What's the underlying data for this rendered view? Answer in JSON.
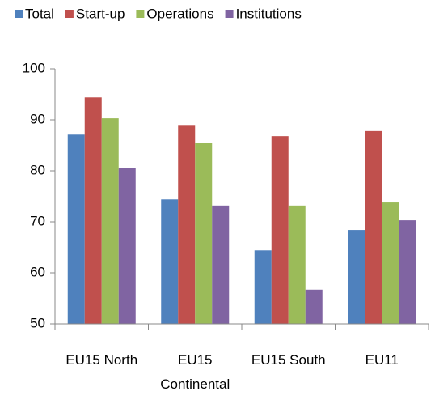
{
  "chart_data": {
    "type": "bar",
    "categories": [
      "EU15 North",
      "EU15 Continental",
      "EU15 South",
      "EU11"
    ],
    "series": [
      {
        "name": "Total",
        "color": "#4f81bd",
        "values": [
          87.1,
          74.4,
          64.4,
          68.4
        ]
      },
      {
        "name": "Start-up",
        "color": "#c0504d",
        "values": [
          94.4,
          89.0,
          86.8,
          87.8
        ]
      },
      {
        "name": "Operations",
        "color": "#9bbb59",
        "values": [
          90.3,
          85.4,
          73.2,
          73.8
        ]
      },
      {
        "name": "Institutions",
        "color": "#8064a2",
        "values": [
          80.6,
          73.2,
          56.7,
          70.3
        ]
      }
    ],
    "ylim": [
      50,
      100
    ],
    "yticks": [
      50,
      60,
      70,
      80,
      90,
      100
    ],
    "grid": false,
    "legend": "top"
  }
}
